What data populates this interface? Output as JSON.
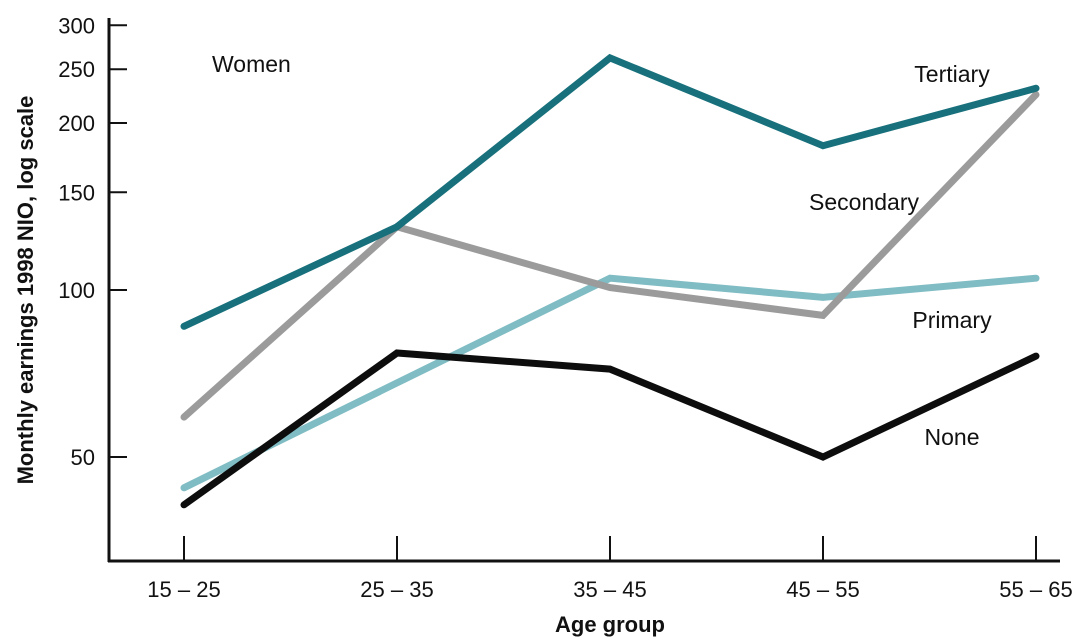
{
  "chart_data": {
    "type": "line",
    "title": "",
    "annotation": "Women",
    "xlabel": "Age group",
    "ylabel": "Monthly earnings 1998 NIO, log scale",
    "yscale": "log",
    "ylim": [
      32,
      300
    ],
    "yticks": [
      50,
      100,
      150,
      200,
      250,
      300
    ],
    "grid": false,
    "legend": "direct labels on lines",
    "categories": [
      "15 – 25",
      "25 – 35",
      "35 – 45",
      "45 – 55",
      "55 – 65"
    ],
    "series": [
      {
        "name": "Tertiary",
        "color": "#17707b",
        "values": [
          86,
          130,
          262,
          182,
          231
        ]
      },
      {
        "name": "Secondary",
        "color": "#9b9b9b",
        "values": [
          59,
          130,
          101,
          90,
          225
        ]
      },
      {
        "name": "Primary",
        "color": "#7fbcc3",
        "values": [
          44,
          68,
          105,
          97,
          105
        ]
      },
      {
        "name": "None",
        "color": "#0d0d0d",
        "values": [
          41,
          77,
          72,
          50,
          76
        ]
      }
    ]
  }
}
